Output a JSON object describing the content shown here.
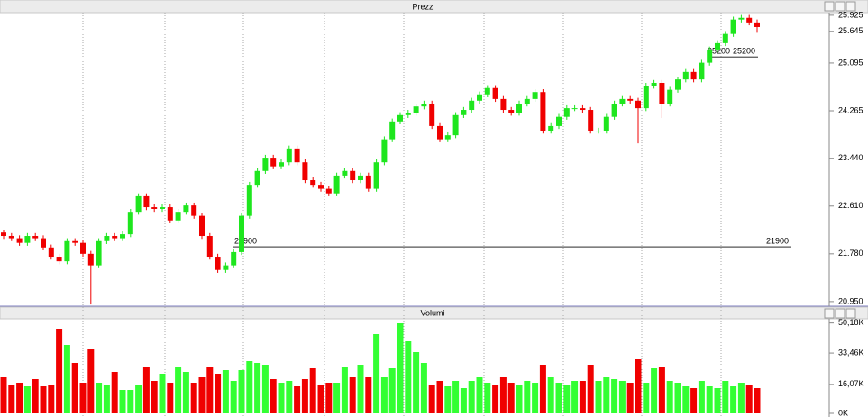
{
  "chart_data": [
    {
      "type": "candlestick",
      "title": "Prezzi",
      "open": [
        22.15,
        22.09,
        22.05,
        21.97,
        22.09,
        22.05,
        21.89,
        21.73,
        21.65,
        22.0,
        21.97,
        21.78,
        21.58,
        22.0,
        22.09,
        22.05,
        22.12,
        22.51,
        22.78,
        22.59,
        22.56,
        22.59,
        22.36,
        22.51,
        22.62,
        22.44,
        22.09,
        21.73,
        21.5,
        21.58,
        21.81,
        22.44,
        22.98,
        23.22,
        23.45,
        23.3,
        23.37,
        23.61,
        23.37,
        23.06,
        22.98,
        22.91,
        22.83,
        23.14,
        23.22,
        23.06,
        23.14,
        22.91,
        23.37,
        23.77,
        24.08,
        24.19,
        24.23,
        24.34,
        24.39,
        24.0,
        23.77,
        23.84,
        24.19,
        24.28,
        24.44,
        24.55,
        24.66,
        24.47,
        24.28,
        24.23,
        24.39,
        24.47,
        24.59,
        23.92,
        24.0,
        24.16,
        24.31,
        24.31,
        24.28,
        23.92,
        23.92,
        24.16,
        24.39,
        24.47,
        24.44,
        24.31,
        24.7,
        24.75,
        24.39,
        24.63,
        24.81,
        24.94,
        24.81,
        25.1,
        25.33,
        25.44,
        25.6,
        25.85,
        25.88,
        25.8
      ],
      "high": [
        22.2,
        22.14,
        22.1,
        22.14,
        22.14,
        22.1,
        21.94,
        21.78,
        22.05,
        22.05,
        22.02,
        21.83,
        22.05,
        22.14,
        22.14,
        22.17,
        22.56,
        22.83,
        22.83,
        22.64,
        22.64,
        22.64,
        22.56,
        22.67,
        22.67,
        22.49,
        22.14,
        21.78,
        21.63,
        21.86,
        22.49,
        23.03,
        23.27,
        23.5,
        23.5,
        23.42,
        23.66,
        23.66,
        23.42,
        23.11,
        23.03,
        22.96,
        23.19,
        23.27,
        23.27,
        23.19,
        23.19,
        23.42,
        23.82,
        24.13,
        24.24,
        24.28,
        24.39,
        24.44,
        24.44,
        24.05,
        23.89,
        24.24,
        24.33,
        24.49,
        24.6,
        24.71,
        24.71,
        24.52,
        24.33,
        24.44,
        24.52,
        24.64,
        24.64,
        24.05,
        24.21,
        24.36,
        24.36,
        24.36,
        24.33,
        23.97,
        24.21,
        24.44,
        24.52,
        24.52,
        24.49,
        24.75,
        24.8,
        24.8,
        24.68,
        24.86,
        24.99,
        24.99,
        25.15,
        25.38,
        25.49,
        25.65,
        25.9,
        25.93,
        25.93,
        25.85
      ],
      "low": [
        22.04,
        22.0,
        21.92,
        21.92,
        22.0,
        21.84,
        21.68,
        21.6,
        21.6,
        21.92,
        21.73,
        20.9,
        21.53,
        21.95,
        22.0,
        22.0,
        22.07,
        22.46,
        22.54,
        22.51,
        22.51,
        22.31,
        22.31,
        22.46,
        22.39,
        22.04,
        21.68,
        21.45,
        21.45,
        21.53,
        21.76,
        22.39,
        22.93,
        23.17,
        23.25,
        23.25,
        23.32,
        23.32,
        23.01,
        22.93,
        22.86,
        22.78,
        22.78,
        23.09,
        23.01,
        23.01,
        22.86,
        22.86,
        23.32,
        23.72,
        24.03,
        24.14,
        24.18,
        24.29,
        23.95,
        23.72,
        23.72,
        23.79,
        24.14,
        24.23,
        24.39,
        24.5,
        24.42,
        24.23,
        24.18,
        24.18,
        24.34,
        24.42,
        23.87,
        23.87,
        23.95,
        24.11,
        24.26,
        24.23,
        23.87,
        23.87,
        23.87,
        24.11,
        24.34,
        24.39,
        23.7,
        24.26,
        24.65,
        24.14,
        24.34,
        24.58,
        24.76,
        24.76,
        24.76,
        25.05,
        25.28,
        25.39,
        25.55,
        25.8,
        25.75,
        25.62
      ],
      "close": [
        22.09,
        22.05,
        21.97,
        22.09,
        22.05,
        21.89,
        21.73,
        21.65,
        22.0,
        21.97,
        21.78,
        21.58,
        22.0,
        22.09,
        22.05,
        22.12,
        22.51,
        22.78,
        22.59,
        22.56,
        22.59,
        22.36,
        22.51,
        22.62,
        22.44,
        22.09,
        21.73,
        21.5,
        21.58,
        21.81,
        22.44,
        22.98,
        23.22,
        23.45,
        23.3,
        23.37,
        23.61,
        23.37,
        23.06,
        22.98,
        22.91,
        22.83,
        23.14,
        23.22,
        23.06,
        23.14,
        22.91,
        23.37,
        23.77,
        24.08,
        24.19,
        24.23,
        24.34,
        24.39,
        24.0,
        23.77,
        23.84,
        24.19,
        24.28,
        24.44,
        24.55,
        24.66,
        24.47,
        24.28,
        24.23,
        24.39,
        24.47,
        24.59,
        23.92,
        24.0,
        24.16,
        24.31,
        24.31,
        24.28,
        23.92,
        23.92,
        24.16,
        24.39,
        24.47,
        24.44,
        24.31,
        24.7,
        24.75,
        24.39,
        24.63,
        24.81,
        24.94,
        24.81,
        25.1,
        25.33,
        25.44,
        25.6,
        25.85,
        25.88,
        25.8,
        25.72
      ],
      "up_color": "#1ee61e",
      "down_color": "#f00000",
      "ylim": [
        20.87,
        25.97
      ],
      "yticks": [
        {
          "value": 20.95,
          "label": "20.950"
        },
        {
          "value": 21.78,
          "label": "21.780"
        },
        {
          "value": 22.61,
          "label": "22.610"
        },
        {
          "value": 23.44,
          "label": "23.440"
        },
        24.265,
        25.095,
        25.645,
        25.925
      ],
      "levels": [
        {
          "value": 21.9,
          "label": "21900"
        },
        {
          "value": 25.2,
          "label": "25200"
        }
      ]
    },
    {
      "type": "bar",
      "title": "Volumi",
      "values": [
        20,
        16,
        17,
        15,
        19,
        15,
        16,
        47,
        38,
        28,
        17,
        36,
        17,
        16,
        23,
        13,
        13,
        16,
        26,
        18,
        22,
        17,
        26,
        23,
        17,
        20,
        26,
        22,
        24,
        18,
        24,
        29,
        28,
        27,
        19,
        17,
        18,
        15,
        19,
        25,
        16,
        17,
        17,
        26,
        20,
        27,
        20,
        44,
        20,
        25,
        50,
        40,
        34,
        28,
        16,
        18,
        15,
        18,
        14,
        18,
        20,
        17,
        16,
        20,
        17,
        16,
        18,
        17,
        27,
        20,
        17,
        16,
        18,
        18,
        27,
        18,
        20,
        19,
        18,
        17,
        30,
        17,
        25,
        26,
        18,
        17,
        15,
        14,
        18,
        15,
        14,
        18,
        15,
        17,
        16,
        14
      ],
      "up_color": "#33ff33",
      "down_color": "#f00000",
      "ylim": [
        0,
        52.5
      ],
      "yticks": [
        {
          "value": 0,
          "label": "0K"
        },
        {
          "value": 16.07,
          "label": "16,07K"
        },
        {
          "value": 33.46,
          "label": "33,46K"
        },
        {
          "value": 50.18,
          "label": "50,18K"
        }
      ]
    }
  ]
}
